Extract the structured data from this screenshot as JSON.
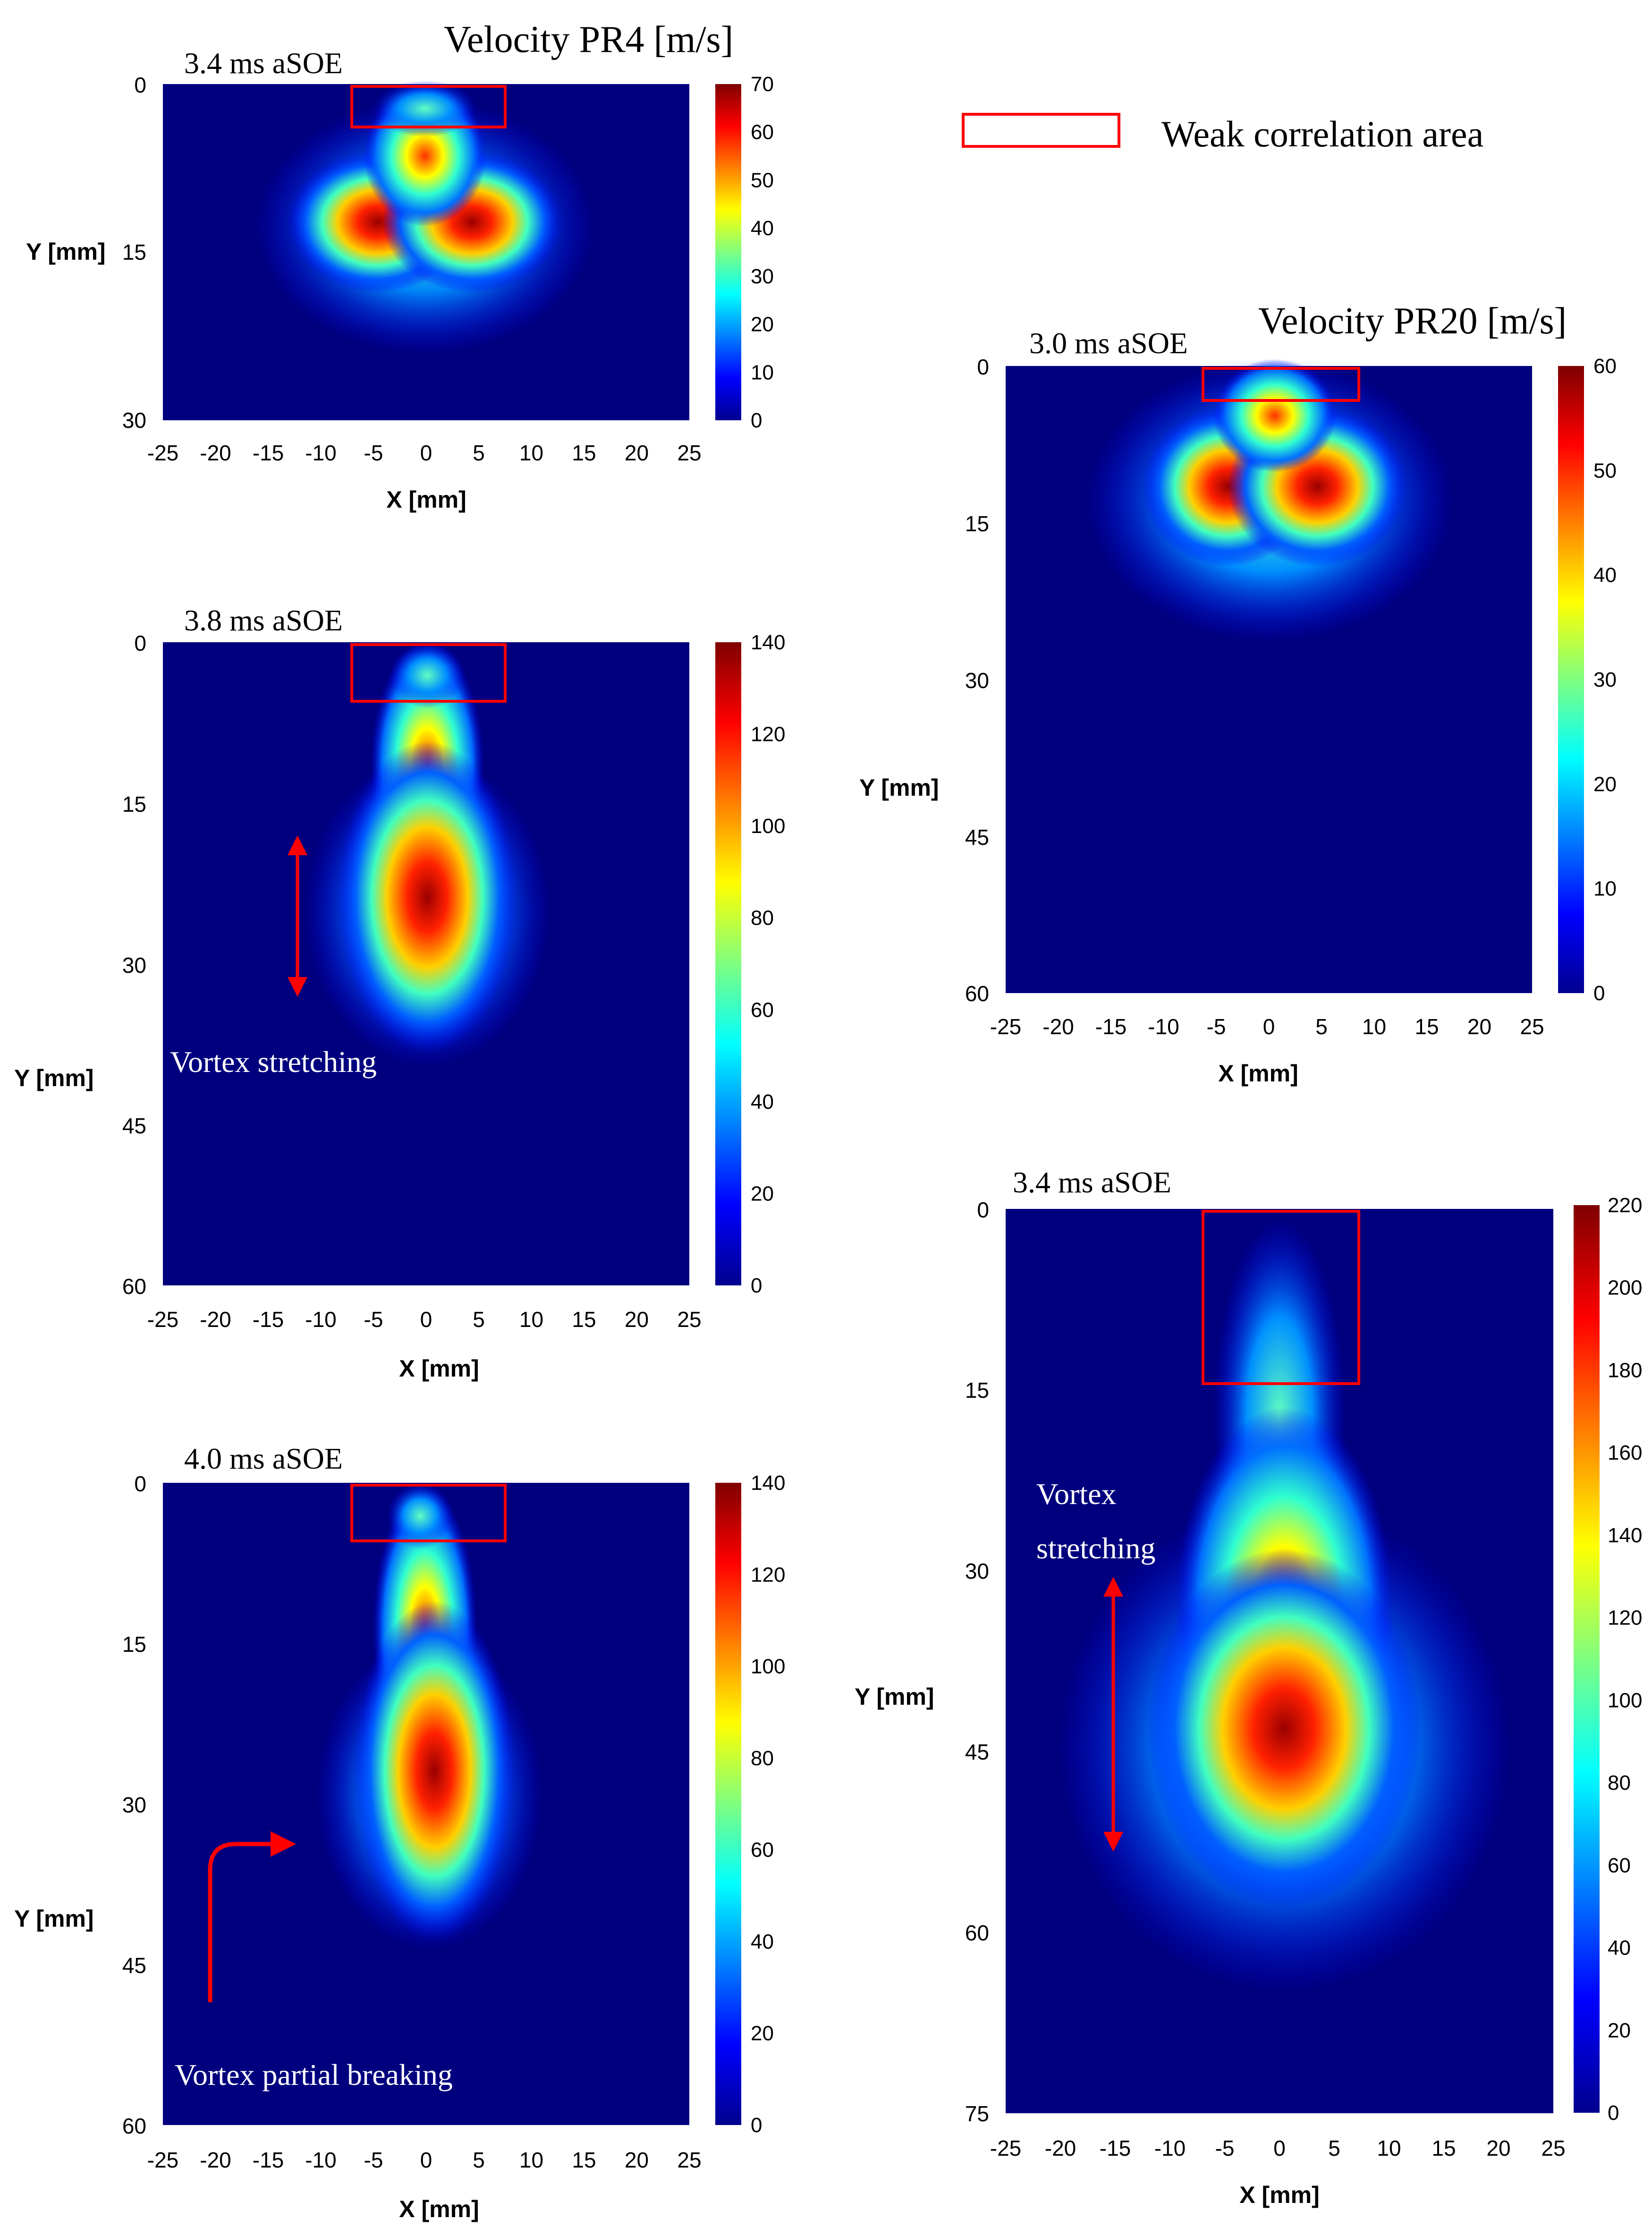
{
  "figure": {
    "title_pr4": "Velocity PR4 [m/s]",
    "title_pr20": "Velocity PR20 [m/s]",
    "legend_label": "Weak correlation area"
  },
  "colors": {
    "background": "#00007f",
    "rect": "#ff0000",
    "annotation": "#ffffff",
    "arrow": "#ff0000"
  },
  "chart_data": [
    {
      "id": "pr4_34",
      "type": "heatmap",
      "title": "3.4 ms aSOE",
      "group": "PR4",
      "xlabel": "X [mm]",
      "ylabel": "Y [mm]",
      "xlim": [
        -25,
        25
      ],
      "ylim": [
        0,
        30
      ],
      "xticks": [
        "-25",
        "-20",
        "-15",
        "-10",
        "-5",
        "0",
        "5",
        "10",
        "15",
        "20",
        "25"
      ],
      "yticks": [
        "0",
        "15",
        "30"
      ],
      "clim": [
        0,
        70
      ],
      "cticks": [
        "0",
        "10",
        "20",
        "30",
        "40",
        "50",
        "60",
        "70"
      ],
      "weak_area": {
        "x0": -7,
        "x1": 8,
        "y0": 0,
        "y1": 3.5
      },
      "annotations": []
    },
    {
      "id": "pr4_38",
      "type": "heatmap",
      "title": "3.8 ms aSOE",
      "group": "PR4",
      "xlabel": "X [mm]",
      "ylabel": "Y [mm]",
      "xlim": [
        -25,
        25
      ],
      "ylim": [
        0,
        60
      ],
      "xticks": [
        "-25",
        "-20",
        "-15",
        "-10",
        "-5",
        "0",
        "5",
        "10",
        "15",
        "20",
        "25"
      ],
      "yticks": [
        "0",
        "15",
        "30",
        "45",
        "60"
      ],
      "clim": [
        0,
        140
      ],
      "cticks": [
        "0",
        "20",
        "40",
        "60",
        "80",
        "100",
        "120",
        "140"
      ],
      "weak_area": {
        "x0": -7,
        "x1": 8,
        "y0": 0,
        "y1": 5
      },
      "annotations": [
        "Vortex stretching"
      ]
    },
    {
      "id": "pr4_40",
      "type": "heatmap",
      "title": "4.0 ms aSOE",
      "group": "PR4",
      "xlabel": "X [mm]",
      "ylabel": "Y [mm]",
      "xlim": [
        -25,
        25
      ],
      "ylim": [
        0,
        60
      ],
      "xticks": [
        "-25",
        "-20",
        "-15",
        "-10",
        "-5",
        "0",
        "5",
        "10",
        "15",
        "20",
        "25"
      ],
      "yticks": [
        "0",
        "15",
        "30",
        "45",
        "60"
      ],
      "clim": [
        0,
        140
      ],
      "cticks": [
        "0",
        "20",
        "40",
        "60",
        "80",
        "100",
        "120",
        "140"
      ],
      "weak_area": {
        "x0": -7,
        "x1": 8,
        "y0": 0,
        "y1": 5
      },
      "annotations": [
        "Vortex partial breaking"
      ]
    },
    {
      "id": "pr20_30",
      "type": "heatmap",
      "title": "3.0 ms aSOE",
      "group": "PR20",
      "xlabel": "X [mm]",
      "ylabel": "Y [mm]",
      "xlim": [
        -25,
        25
      ],
      "ylim": [
        0,
        60
      ],
      "xticks": [
        "-25",
        "-20",
        "-15",
        "-10",
        "-5",
        "0",
        "5",
        "10",
        "15",
        "20",
        "25"
      ],
      "yticks": [
        "0",
        "15",
        "30",
        "45",
        "60"
      ],
      "clim": [
        0,
        60
      ],
      "cticks": [
        "0",
        "10",
        "20",
        "30",
        "40",
        "50",
        "60"
      ],
      "weak_area": {
        "x0": -6,
        "x1": 9,
        "y0": 0,
        "y1": 3
      },
      "annotations": []
    },
    {
      "id": "pr20_34",
      "type": "heatmap",
      "title": "3.4 ms aSOE",
      "group": "PR20",
      "xlabel": "X [mm]",
      "ylabel": "Y [mm]",
      "xlim": [
        -25,
        25
      ],
      "ylim": [
        0,
        75
      ],
      "xticks": [
        "-25",
        "-20",
        "-15",
        "-10",
        "-5",
        "0",
        "5",
        "10",
        "15",
        "20",
        "25"
      ],
      "yticks": [
        "0",
        "15",
        "30",
        "45",
        "60",
        "75"
      ],
      "clim": [
        0,
        220
      ],
      "cticks": [
        "0",
        "20",
        "40",
        "60",
        "80",
        "100",
        "120",
        "140",
        "160",
        "180",
        "200",
        "220"
      ],
      "weak_area": {
        "x0": -7,
        "x1": 8,
        "y0": 0,
        "y1": 14
      },
      "annotations": [
        "Vortex",
        "stretching"
      ]
    }
  ]
}
